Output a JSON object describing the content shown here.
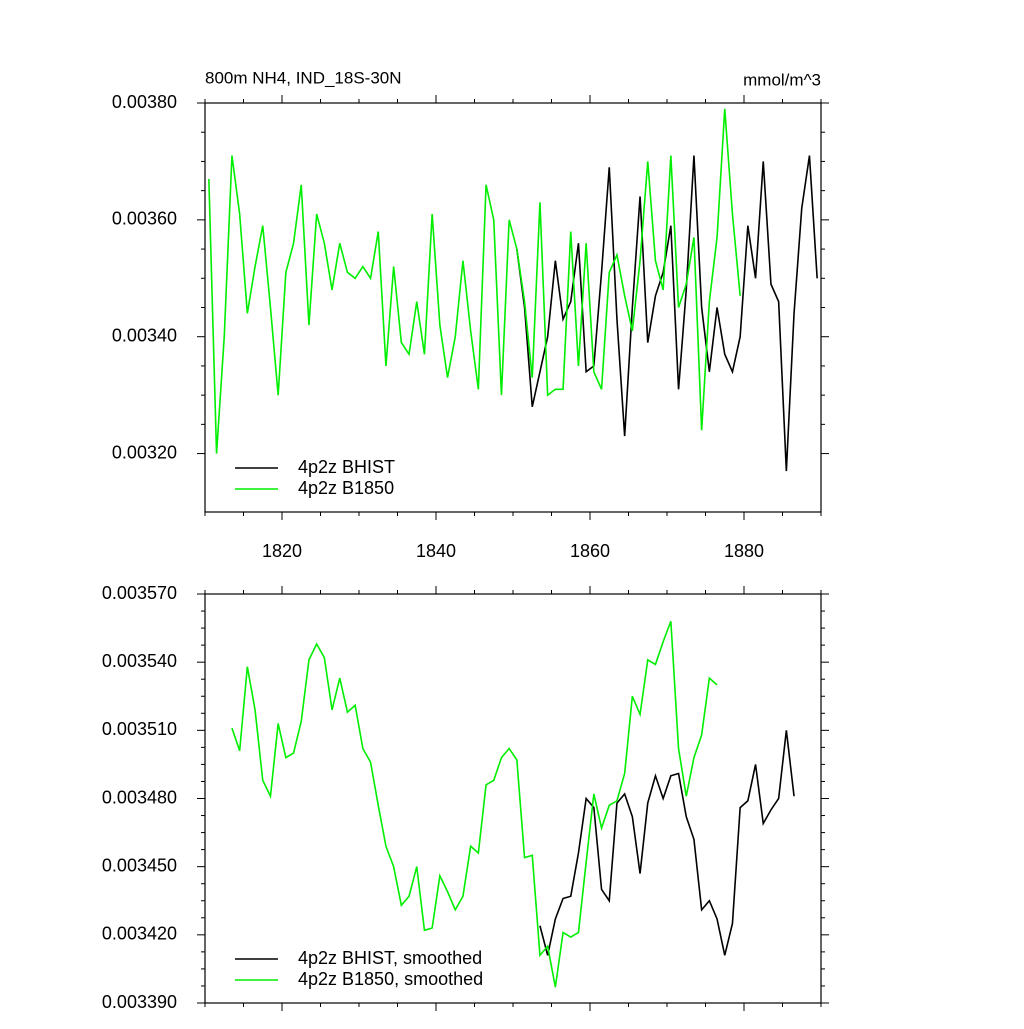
{
  "chart_data": [
    {
      "type": "line",
      "title": "800m NH4, IND_18S-30N",
      "units": "mmol/m^3",
      "xlim": [
        1810,
        1890
      ],
      "xticks": [
        1820,
        1840,
        1860,
        1880
      ],
      "show_xtick_labels": true,
      "ylim": [
        0.0031,
        0.0038
      ],
      "yticks": [
        {
          "value": 0.0032,
          "label": "0.00320"
        },
        {
          "value": 0.0034,
          "label": "0.00340"
        },
        {
          "value": 0.0036,
          "label": "0.00360"
        },
        {
          "value": 0.0038,
          "label": "0.00380"
        }
      ],
      "legend": "lower left",
      "series": [
        {
          "name": "4p2z BHIST",
          "color": "#000000",
          "x": [
            1850.5,
            1851.5,
            1852.5,
            1853.5,
            1854.5,
            1855.5,
            1856.5,
            1857.5,
            1858.5,
            1859.5,
            1860.5,
            1861.5,
            1862.5,
            1863.5,
            1864.5,
            1865.5,
            1866.5,
            1867.5,
            1868.5,
            1869.5,
            1870.5,
            1871.5,
            1872.5,
            1873.5,
            1874.5,
            1875.5,
            1876.5,
            1877.5,
            1878.5,
            1879.5,
            1880.5,
            1881.5,
            1882.5,
            1883.5,
            1884.5,
            1885.5,
            1886.5,
            1887.5,
            1888.5,
            1889.5
          ],
          "values": [
            0.00355,
            0.00345,
            0.00328,
            0.00334,
            0.0034,
            0.00353,
            0.00343,
            0.00346,
            0.00356,
            0.00334,
            0.00335,
            0.00351,
            0.00369,
            0.00343,
            0.00323,
            0.00345,
            0.00364,
            0.00339,
            0.00347,
            0.00351,
            0.00359,
            0.00331,
            0.00348,
            0.00371,
            0.00345,
            0.00334,
            0.00345,
            0.00337,
            0.00334,
            0.0034,
            0.00359,
            0.0035,
            0.0037,
            0.00349,
            0.00346,
            0.00317,
            0.00344,
            0.00362,
            0.00371,
            0.0035
          ]
        },
        {
          "name": "4p2z B1850",
          "color": "#00ee00",
          "x": [
            1810.5,
            1811.5,
            1812.5,
            1813.5,
            1814.5,
            1815.5,
            1816.5,
            1817.5,
            1818.5,
            1819.5,
            1820.5,
            1821.5,
            1822.5,
            1823.5,
            1824.5,
            1825.5,
            1826.5,
            1827.5,
            1828.5,
            1829.5,
            1830.5,
            1831.5,
            1832.5,
            1833.5,
            1834.5,
            1835.5,
            1836.5,
            1837.5,
            1838.5,
            1839.5,
            1840.5,
            1841.5,
            1842.5,
            1843.5,
            1844.5,
            1845.5,
            1846.5,
            1847.5,
            1848.5,
            1849.5,
            1850.5,
            1851.5,
            1852.5,
            1853.5,
            1854.5,
            1855.5,
            1856.5,
            1857.5,
            1858.5,
            1859.5,
            1860.5,
            1861.5,
            1862.5,
            1863.5,
            1864.5,
            1865.5,
            1866.5,
            1867.5,
            1868.5,
            1869.5,
            1870.5,
            1871.5,
            1872.5,
            1873.5,
            1874.5,
            1875.5,
            1876.5,
            1877.5,
            1878.5,
            1879.5
          ],
          "values": [
            0.00367,
            0.0032,
            0.0034,
            0.00371,
            0.00361,
            0.00344,
            0.00352,
            0.00359,
            0.00345,
            0.0033,
            0.00351,
            0.00356,
            0.00366,
            0.00342,
            0.00361,
            0.00356,
            0.00348,
            0.00356,
            0.00351,
            0.0035,
            0.00352,
            0.0035,
            0.00358,
            0.00335,
            0.00352,
            0.00339,
            0.00337,
            0.00346,
            0.00337,
            0.00361,
            0.00342,
            0.00333,
            0.0034,
            0.00353,
            0.00341,
            0.00331,
            0.00366,
            0.0036,
            0.0033,
            0.0036,
            0.00355,
            0.00346,
            0.00333,
            0.00363,
            0.0033,
            0.00331,
            0.00331,
            0.00358,
            0.00335,
            0.00356,
            0.00334,
            0.00331,
            0.00351,
            0.00354,
            0.00347,
            0.00341,
            0.00353,
            0.0037,
            0.00353,
            0.00348,
            0.00371,
            0.00345,
            0.00349,
            0.00357,
            0.00324,
            0.00346,
            0.00357,
            0.00379,
            0.00361,
            0.00347
          ]
        }
      ]
    },
    {
      "type": "line",
      "xlim": [
        1810,
        1890
      ],
      "xticks": [
        1820,
        1840,
        1860,
        1880
      ],
      "show_xtick_labels": false,
      "ylim": [
        0.00339,
        0.00357
      ],
      "yticks": [
        {
          "value": 0.00339,
          "label": "0.003390"
        },
        {
          "value": 0.00342,
          "label": "0.003420"
        },
        {
          "value": 0.00345,
          "label": "0.003450"
        },
        {
          "value": 0.00348,
          "label": "0.003480"
        },
        {
          "value": 0.00351,
          "label": "0.003510"
        },
        {
          "value": 0.00354,
          "label": "0.003540"
        },
        {
          "value": 0.00357,
          "label": "0.003570"
        }
      ],
      "legend": "lower left",
      "series": [
        {
          "name": "4p2z BHIST, smoothed",
          "color": "#000000",
          "x": [
            1853.5,
            1854.5,
            1855.5,
            1856.5,
            1857.5,
            1858.5,
            1859.5,
            1860.5,
            1861.5,
            1862.5,
            1863.5,
            1864.5,
            1865.5,
            1866.5,
            1867.5,
            1868.5,
            1869.5,
            1870.5,
            1871.5,
            1872.5,
            1873.5,
            1874.5,
            1875.5,
            1876.5,
            1877.5,
            1878.5,
            1879.5,
            1880.5,
            1881.5,
            1882.5,
            1883.5,
            1884.5,
            1885.5,
            1886.5
          ],
          "values": [
            0.003424,
            0.003411,
            0.003427,
            0.003436,
            0.003437,
            0.003456,
            0.00348,
            0.003476,
            0.00344,
            0.003435,
            0.003478,
            0.003482,
            0.003472,
            0.003447,
            0.003478,
            0.00349,
            0.00348,
            0.00349,
            0.003491,
            0.003472,
            0.003462,
            0.003431,
            0.003435,
            0.003427,
            0.003411,
            0.003425,
            0.003476,
            0.003479,
            0.003495,
            0.003469,
            0.003475,
            0.00348,
            0.00351,
            0.003481
          ]
        },
        {
          "name": "4p2z B1850, smoothed",
          "color": "#00ee00",
          "x": [
            1813.5,
            1814.5,
            1815.5,
            1816.5,
            1817.5,
            1818.5,
            1819.5,
            1820.5,
            1821.5,
            1822.5,
            1823.5,
            1824.5,
            1825.5,
            1826.5,
            1827.5,
            1828.5,
            1829.5,
            1830.5,
            1831.5,
            1832.5,
            1833.5,
            1834.5,
            1835.5,
            1836.5,
            1837.5,
            1838.5,
            1839.5,
            1840.5,
            1841.5,
            1842.5,
            1843.5,
            1844.5,
            1845.5,
            1846.5,
            1847.5,
            1848.5,
            1849.5,
            1850.5,
            1851.5,
            1852.5,
            1853.5,
            1854.5,
            1855.5,
            1856.5,
            1857.5,
            1858.5,
            1859.5,
            1860.5,
            1861.5,
            1862.5,
            1863.5,
            1864.5,
            1865.5,
            1866.5,
            1867.5,
            1868.5,
            1869.5,
            1870.5,
            1871.5,
            1872.5,
            1873.5,
            1874.5,
            1875.5,
            1876.5
          ],
          "values": [
            0.003511,
            0.003501,
            0.003538,
            0.003519,
            0.003488,
            0.003481,
            0.003513,
            0.003498,
            0.0035,
            0.003514,
            0.003541,
            0.003548,
            0.003542,
            0.003519,
            0.003533,
            0.003518,
            0.003521,
            0.003502,
            0.003496,
            0.003477,
            0.003459,
            0.00345,
            0.003433,
            0.003437,
            0.00345,
            0.003422,
            0.003423,
            0.003446,
            0.003439,
            0.003431,
            0.003437,
            0.003459,
            0.003456,
            0.003486,
            0.003488,
            0.003498,
            0.003502,
            0.003497,
            0.003454,
            0.003455,
            0.003411,
            0.003415,
            0.003397,
            0.003421,
            0.003419,
            0.003421,
            0.003452,
            0.003482,
            0.003467,
            0.003477,
            0.003479,
            0.003491,
            0.003525,
            0.003517,
            0.003541,
            0.003539,
            0.003549,
            0.003558,
            0.003502,
            0.003481,
            0.003498,
            0.003508,
            0.003533,
            0.00353
          ]
        }
      ]
    }
  ]
}
